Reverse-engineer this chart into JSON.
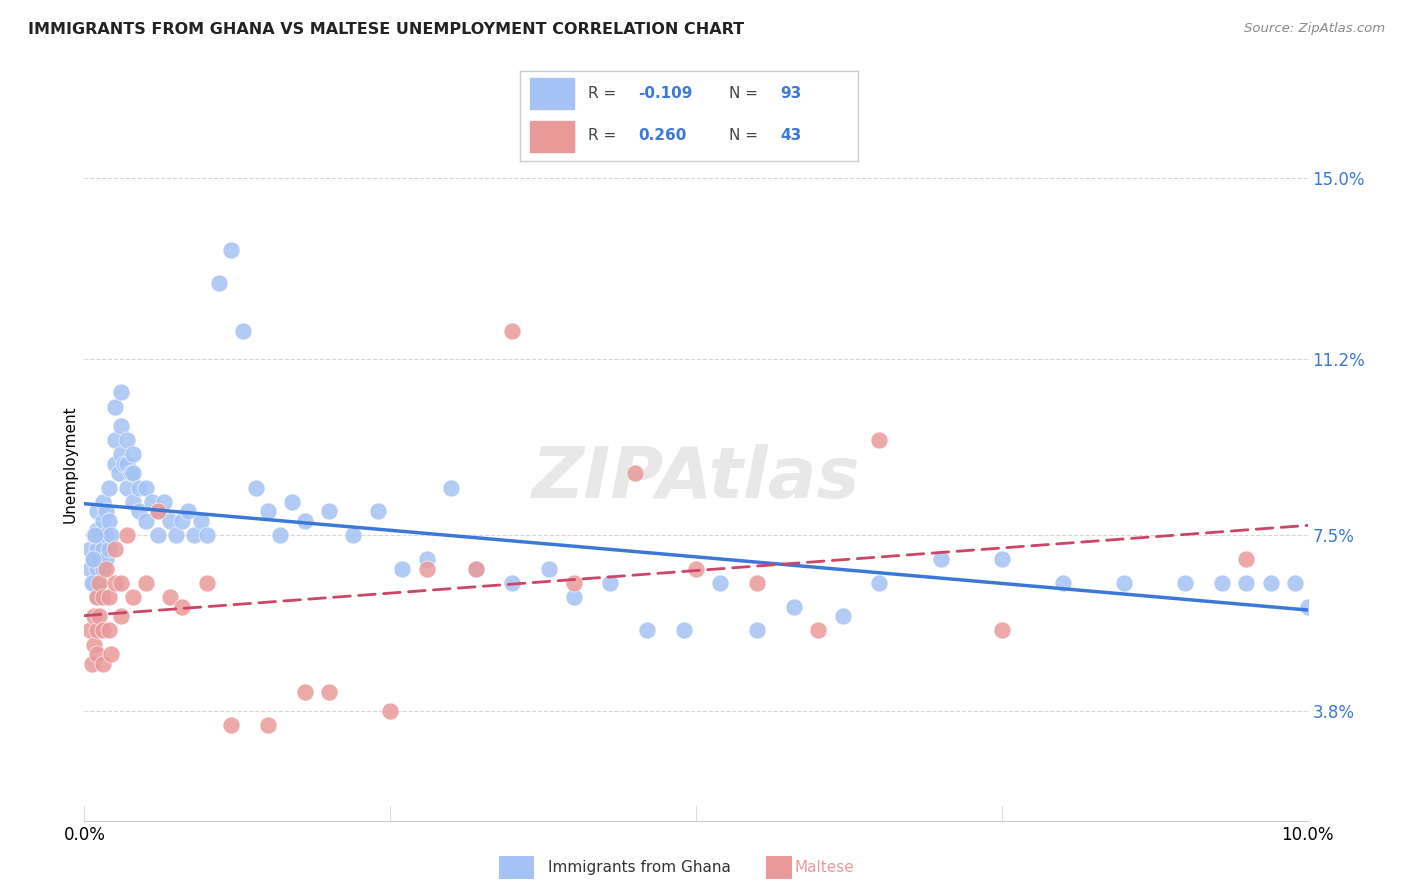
{
  "title": "IMMIGRANTS FROM GHANA VS MALTESE UNEMPLOYMENT CORRELATION CHART",
  "source": "Source: ZipAtlas.com",
  "ylabel": "Unemployment",
  "ytick_vals": [
    3.8,
    7.5,
    11.2,
    15.0
  ],
  "ytick_labels": [
    "3.8%",
    "7.5%",
    "11.2%",
    "15.0%"
  ],
  "xmin": 0.0,
  "xmax": 10.0,
  "ymin": 1.5,
  "ymax": 16.5,
  "ghana_R": -0.109,
  "ghana_N": 93,
  "maltese_R": 0.26,
  "maltese_N": 43,
  "ghana_color": "#a4c2f4",
  "maltese_color": "#ea9999",
  "ghana_line_color": "#3c78d8",
  "maltese_line_color": "#cc4466",
  "background_color": "#ffffff",
  "grid_color": "#cccccc",
  "ytick_color": "#3c78d8",
  "watermark_text": "ZIPAtlas",
  "watermark_color": "#e8e8e8",
  "legend_text_color": "#3c78d8",
  "ghana_scatter_x": [
    0.05,
    0.05,
    0.08,
    0.08,
    0.08,
    0.1,
    0.1,
    0.1,
    0.1,
    0.1,
    0.12,
    0.12,
    0.12,
    0.15,
    0.15,
    0.15,
    0.15,
    0.18,
    0.18,
    0.18,
    0.2,
    0.2,
    0.2,
    0.22,
    0.25,
    0.25,
    0.25,
    0.28,
    0.3,
    0.3,
    0.3,
    0.32,
    0.35,
    0.35,
    0.35,
    0.38,
    0.4,
    0.4,
    0.4,
    0.45,
    0.45,
    0.5,
    0.5,
    0.55,
    0.6,
    0.6,
    0.65,
    0.7,
    0.75,
    0.8,
    0.85,
    0.9,
    0.95,
    1.0,
    1.1,
    1.2,
    1.3,
    1.4,
    1.5,
    1.6,
    1.7,
    1.8,
    2.0,
    2.2,
    2.4,
    2.6,
    2.8,
    3.0,
    3.2,
    3.5,
    3.8,
    4.0,
    4.3,
    4.6,
    4.9,
    5.2,
    5.5,
    5.8,
    6.2,
    6.5,
    7.0,
    7.5,
    8.0,
    8.5,
    9.0,
    9.3,
    9.5,
    9.7,
    9.9,
    10.0,
    0.06,
    0.07,
    0.09
  ],
  "ghana_scatter_y": [
    6.8,
    7.2,
    6.5,
    7.0,
    7.5,
    6.2,
    6.8,
    7.2,
    7.6,
    8.0,
    6.5,
    7.0,
    7.5,
    6.8,
    7.2,
    7.8,
    8.2,
    7.0,
    7.5,
    8.0,
    7.2,
    7.8,
    8.5,
    7.5,
    9.0,
    9.5,
    10.2,
    8.8,
    9.2,
    9.8,
    10.5,
    9.0,
    8.5,
    9.0,
    9.5,
    8.8,
    8.2,
    8.8,
    9.2,
    8.5,
    8.0,
    8.5,
    7.8,
    8.2,
    8.0,
    7.5,
    8.2,
    7.8,
    7.5,
    7.8,
    8.0,
    7.5,
    7.8,
    7.5,
    12.8,
    13.5,
    11.8,
    8.5,
    8.0,
    7.5,
    8.2,
    7.8,
    8.0,
    7.5,
    8.0,
    6.8,
    7.0,
    8.5,
    6.8,
    6.5,
    6.8,
    6.2,
    6.5,
    5.5,
    5.5,
    6.5,
    5.5,
    6.0,
    5.8,
    6.5,
    7.0,
    7.0,
    6.5,
    6.5,
    6.5,
    6.5,
    6.5,
    6.5,
    6.5,
    6.0,
    6.5,
    7.0,
    7.5
  ],
  "maltese_scatter_x": [
    0.05,
    0.06,
    0.08,
    0.08,
    0.1,
    0.1,
    0.1,
    0.12,
    0.12,
    0.15,
    0.15,
    0.15,
    0.18,
    0.2,
    0.2,
    0.22,
    0.25,
    0.25,
    0.3,
    0.3,
    0.35,
    0.4,
    0.5,
    0.6,
    0.7,
    0.8,
    1.0,
    1.2,
    1.5,
    1.8,
    2.0,
    2.5,
    2.8,
    3.2,
    3.5,
    4.0,
    4.5,
    5.0,
    5.5,
    6.0,
    6.5,
    7.5,
    9.5
  ],
  "maltese_scatter_y": [
    5.5,
    4.8,
    5.2,
    5.8,
    5.0,
    5.5,
    6.2,
    5.8,
    6.5,
    4.8,
    5.5,
    6.2,
    6.8,
    5.5,
    6.2,
    5.0,
    6.5,
    7.2,
    5.8,
    6.5,
    7.5,
    6.2,
    6.5,
    8.0,
    6.2,
    6.0,
    6.5,
    3.5,
    3.5,
    4.2,
    4.2,
    3.8,
    6.8,
    6.8,
    11.8,
    6.5,
    8.8,
    6.8,
    6.5,
    5.5,
    9.5,
    5.5,
    7.0
  ]
}
